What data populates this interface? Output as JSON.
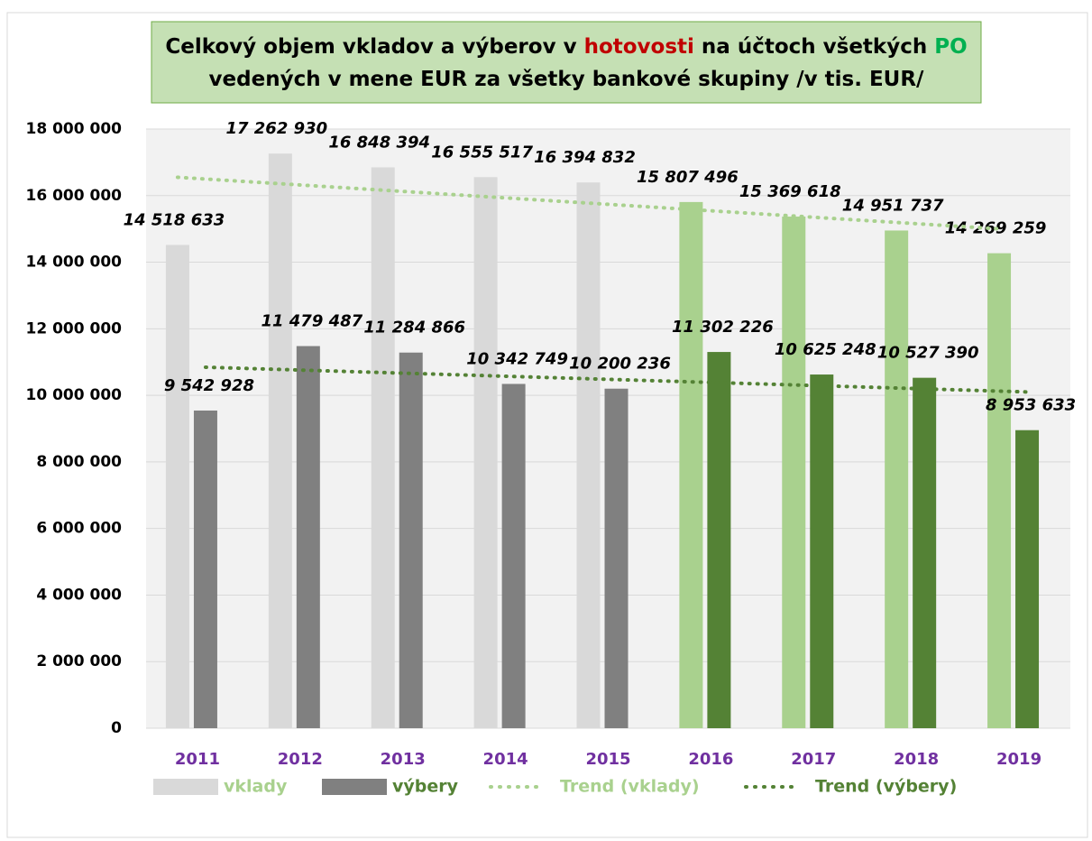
{
  "chart_data": {
    "type": "bar",
    "title_lines": [
      [
        {
          "text": "Celkový objem vkladov a výberov v ",
          "color": "#000000"
        },
        {
          "text": "hotovosti",
          "color": "#c00000"
        },
        {
          "text": " na účtoch všetkých ",
          "color": "#000000"
        },
        {
          "text": "PO",
          "color": "#00b050"
        }
      ],
      [
        {
          "text": "vedených v mene EUR za všetky bankové skupiny /v tis. EUR/",
          "color": "#000000"
        }
      ]
    ],
    "categories": [
      "2011",
      "2012",
      "2013",
      "2014",
      "2015",
      "2016",
      "2017",
      "2018",
      "2019"
    ],
    "series": [
      {
        "name": "vklady",
        "color": "#d9d9d9",
        "legend_text_color": "#a9d18e",
        "colors": [
          "#d9d9d9",
          "#d9d9d9",
          "#d9d9d9",
          "#d9d9d9",
          "#d9d9d9",
          "#a9d18e",
          "#a9d18e",
          "#a9d18e",
          "#a9d18e"
        ],
        "values": [
          14518633,
          17262930,
          16848394,
          16555517,
          16394832,
          15807496,
          15369618,
          14951737,
          14269259
        ],
        "value_labels": [
          "14 518 633",
          "17 262 930",
          "16 848 394",
          "16 555 517",
          "16 394 832",
          "15 807 496",
          "15 369 618",
          "14 951 737",
          "14 269 259"
        ],
        "trend_name": "Trend (vklady)",
        "trend_color": "#a9d18e"
      },
      {
        "name": "výbery",
        "color": "#808080",
        "legend_text_color": "#548235",
        "colors": [
          "#808080",
          "#808080",
          "#808080",
          "#808080",
          "#808080",
          "#548235",
          "#548235",
          "#548235",
          "#548235"
        ],
        "values": [
          9542928,
          11479487,
          11284866,
          10342749,
          10200236,
          11302226,
          10625248,
          10527390,
          8953633
        ],
        "value_labels": [
          "9 542 928",
          "11 479 487",
          "11 284 866",
          "10 342 749",
          "10 200 236",
          "11 302 226",
          "10 625 248",
          "10 527 390",
          "8 953 633"
        ],
        "trend_name": "Trend (výbery)",
        "trend_color": "#548235"
      }
    ],
    "ylim": [
      0,
      18000000
    ],
    "yticks": [
      0,
      {
        "value": 2000000,
        "label": "2 000 000"
      },
      {
        "value": 4000000,
        "label": "4 000 000"
      },
      {
        "value": 6000000,
        "label": "6 000 000"
      },
      {
        "value": 8000000,
        "label": "8 000 000"
      },
      {
        "value": 10000000,
        "label": "10 000 000"
      },
      {
        "value": 12000000,
        "label": "12 000 000"
      },
      {
        "value": 14000000,
        "label": "14 000 000"
      },
      {
        "value": 16000000,
        "label": "16 000 000"
      },
      {
        "value": 18000000,
        "label": "18 000 000"
      }
    ],
    "grid": true,
    "trendline": "linear",
    "legend": "bottom"
  }
}
